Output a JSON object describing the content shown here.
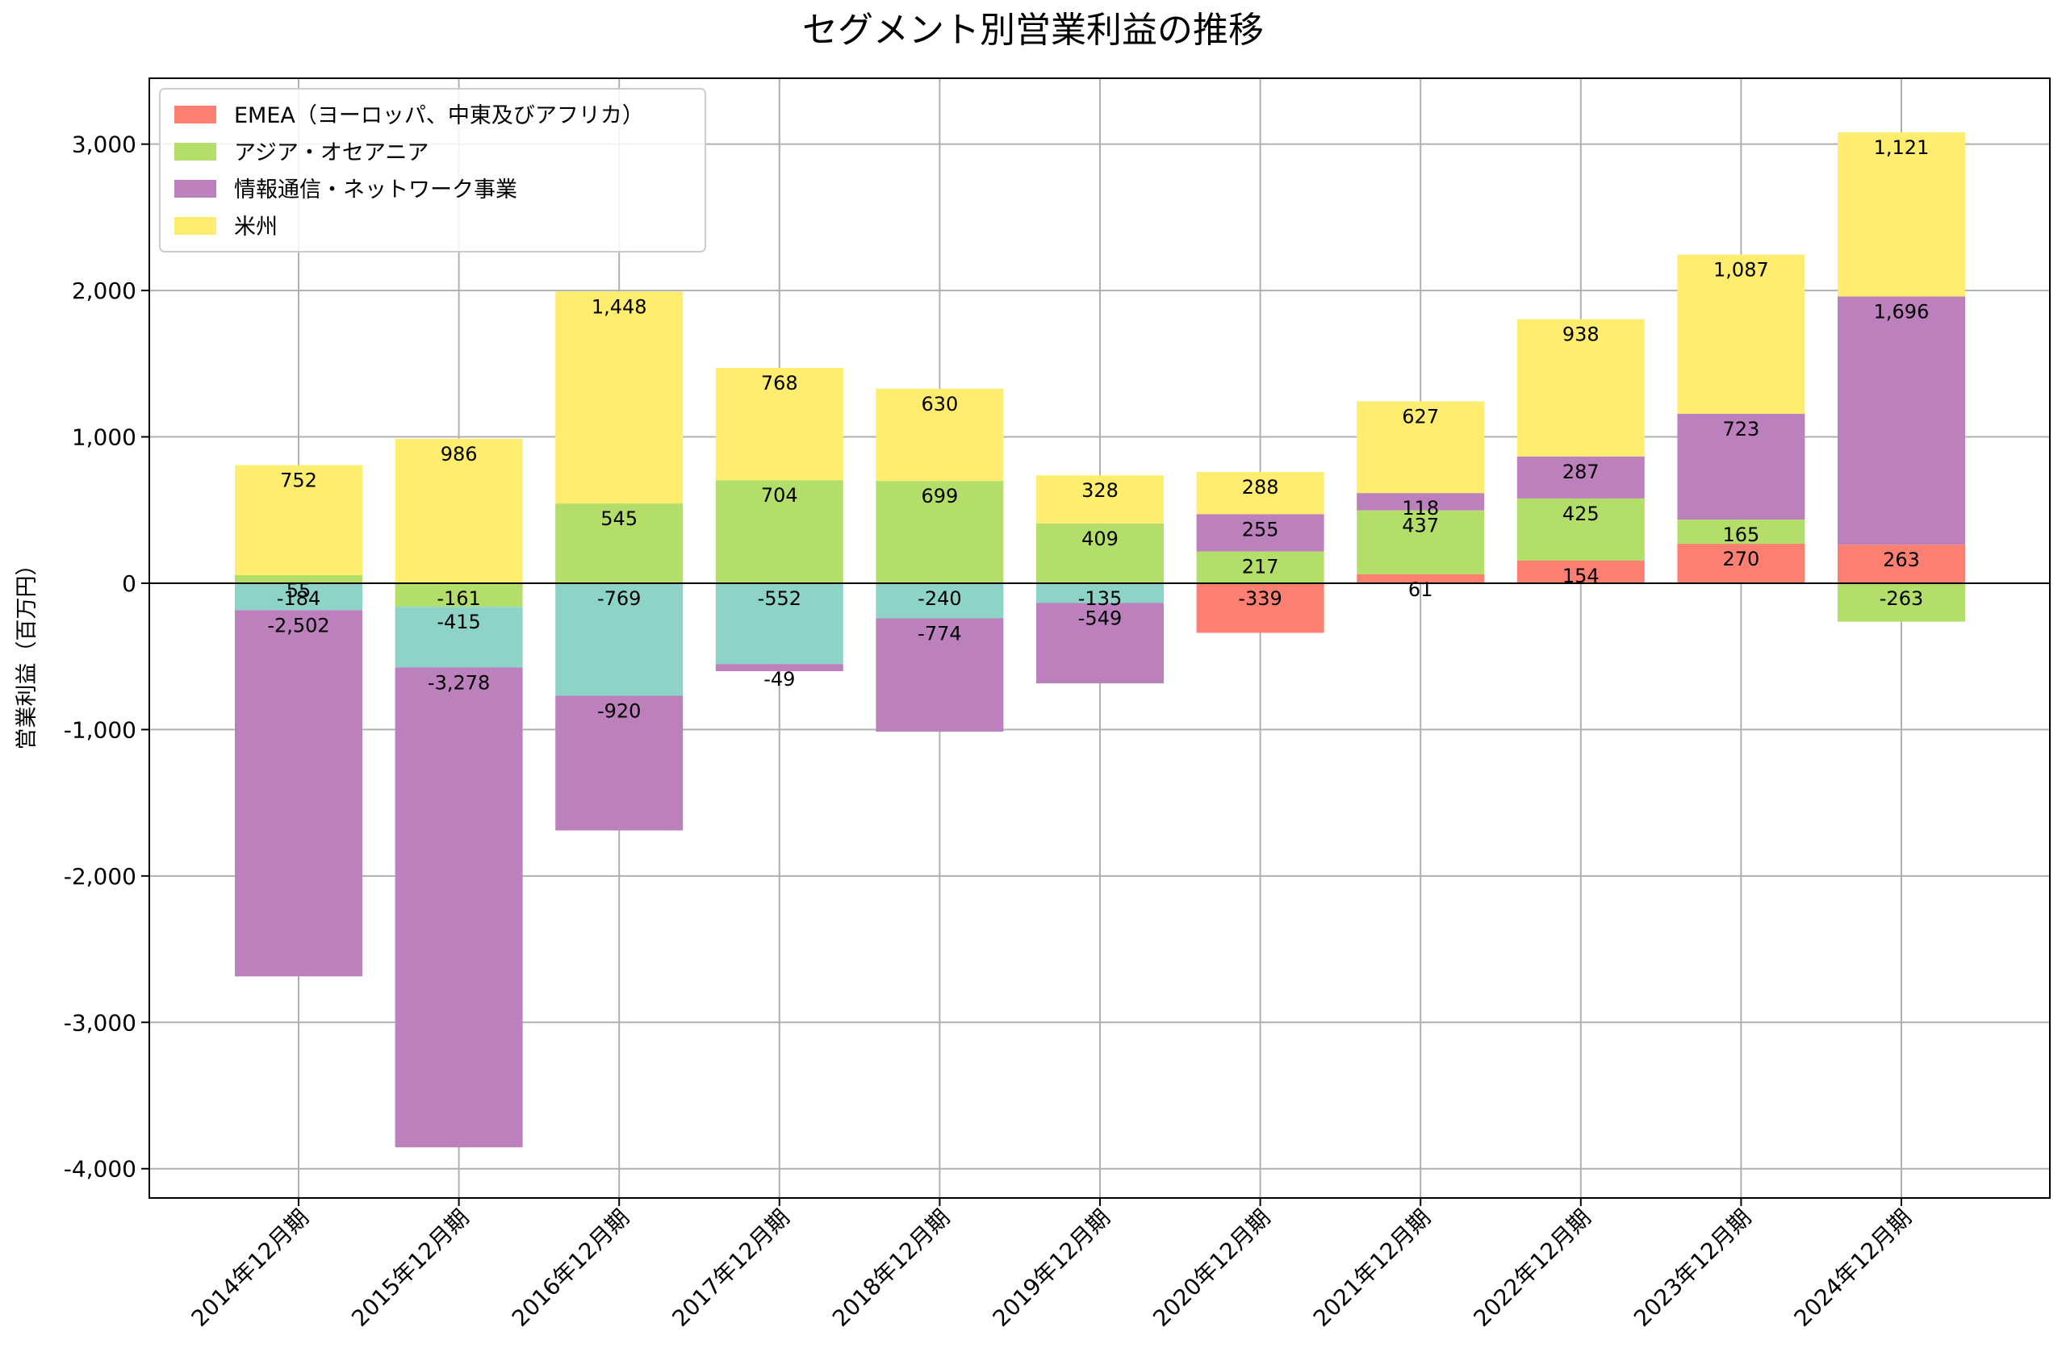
{
  "chart_data": {
    "type": "bar",
    "stacked": true,
    "title": "セグメント別営業利益の推移",
    "xlabel": "",
    "ylabel": "営業利益（百万円）",
    "ylim": [
      -4200,
      3450
    ],
    "yticks": [
      -4000,
      -3000,
      -2000,
      -1000,
      0,
      1000,
      2000,
      3000
    ],
    "ytick_labels": [
      "-4,000",
      "-3,000",
      "-2,000",
      "-1,000",
      "0",
      "1,000",
      "2,000",
      "3,000"
    ],
    "grid": true,
    "legend_position": "top-left",
    "categories": [
      "2014年12月期",
      "2015年12月期",
      "2016年12月期",
      "2017年12月期",
      "2018年12月期",
      "2019年12月期",
      "2020年12月期",
      "2021年12月期",
      "2022年12月期",
      "2023年12月期",
      "2024年12月期"
    ],
    "series": [
      {
        "name": "EMEA（ヨーロッパ、中東及びアフリカ）",
        "color": "#fb8072",
        "in_legend": true,
        "values": [
          0,
          0,
          0,
          0,
          0,
          0,
          -339,
          61,
          154,
          270,
          263
        ]
      },
      {
        "name": "アジア・オセアニア",
        "color": "#b3de69",
        "in_legend": true,
        "values": [
          55,
          -161,
          545,
          704,
          699,
          409,
          217,
          437,
          425,
          165,
          -263
        ]
      },
      {
        "name": "",
        "color": "#8dd3c7",
        "in_legend": false,
        "values": [
          -184,
          -415,
          -769,
          -552,
          -240,
          -135,
          0,
          0,
          0,
          0,
          0
        ]
      },
      {
        "name": "情報通信・ネットワーク事業",
        "color": "#bc80bd",
        "in_legend": true,
        "values": [
          -2502,
          -3278,
          -920,
          -49,
          -774,
          -549,
          255,
          118,
          287,
          723,
          1696
        ]
      },
      {
        "name": "米州",
        "color": "#ffed6f",
        "in_legend": true,
        "values": [
          752,
          986,
          1448,
          768,
          630,
          328,
          288,
          627,
          938,
          1087,
          1121
        ]
      }
    ]
  }
}
